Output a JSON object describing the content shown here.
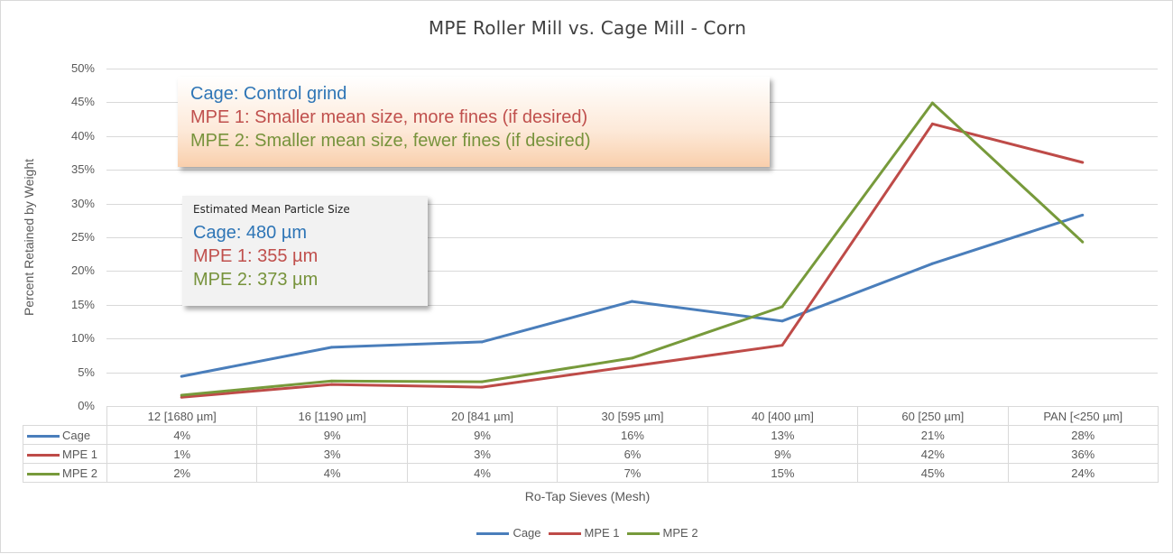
{
  "chart_data": {
    "type": "line",
    "title": "MPE Roller Mill vs. Cage Mill - Corn",
    "xlabel": "Ro-Tap Sieves (Mesh)",
    "ylabel": "Percent Retained by Weight",
    "ylim": [
      0,
      0.5
    ],
    "ytick_labels": [
      "0%",
      "5%",
      "10%",
      "15%",
      "20%",
      "25%",
      "30%",
      "35%",
      "40%",
      "45%",
      "50%"
    ],
    "categories": [
      "12 [1680 µm]",
      "16 [1190 µm]",
      "20 [841 µm]",
      "30 [595 µm]",
      "40 [400 µm]",
      "60 [250 µm]",
      "PAN [<250 µm]"
    ],
    "series": [
      {
        "name": "Cage",
        "color": "#4a7ebb",
        "values": [
          0.044,
          0.087,
          0.095,
          0.155,
          0.126,
          0.211,
          0.283
        ],
        "labels": [
          "4%",
          "9%",
          "9%",
          "16%",
          "13%",
          "21%",
          "28%"
        ]
      },
      {
        "name": "MPE 1",
        "color": "#be4b48",
        "values": [
          0.013,
          0.032,
          0.028,
          0.059,
          0.09,
          0.418,
          0.361
        ],
        "labels": [
          "1%",
          "3%",
          "3%",
          "6%",
          "9%",
          "42%",
          "36%"
        ]
      },
      {
        "name": "MPE 2",
        "color": "#779a3b",
        "values": [
          0.016,
          0.037,
          0.036,
          0.071,
          0.147,
          0.449,
          0.243
        ],
        "labels": [
          "2%",
          "4%",
          "4%",
          "7%",
          "15%",
          "45%",
          "24%"
        ]
      }
    ],
    "grid": true,
    "legend": "bottom",
    "data_table": true
  },
  "annotations": {
    "callout": {
      "lines": [
        {
          "text": "Cage: Control grind",
          "color": "#2e75b6"
        },
        {
          "text": "MPE 1: Smaller mean size, more fines (if desired)",
          "color": "#c0504d"
        },
        {
          "text": "MPE 2: Smaller mean size, fewer fines (if desired)",
          "color": "#77933c"
        }
      ]
    },
    "mean_size": {
      "title": "Estimated Mean Particle Size",
      "lines": [
        {
          "text": "Cage: 480 µm",
          "color": "#2e75b6"
        },
        {
          "text": "MPE 1: 355 µm",
          "color": "#c0504d"
        },
        {
          "text": "MPE 2: 373 µm",
          "color": "#77933c"
        }
      ]
    }
  }
}
